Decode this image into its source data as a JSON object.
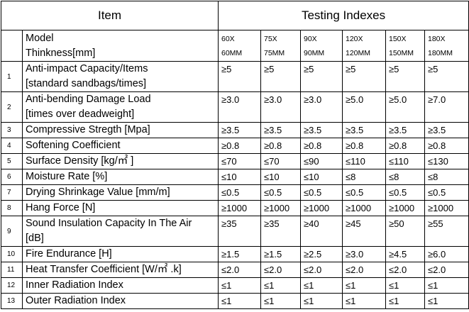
{
  "header": {
    "item_label": "Item",
    "indexes_label": "Testing Indexes"
  },
  "model_row": {
    "label_line1": "Model",
    "label_line2": "Thinkness[mm]",
    "models": [
      {
        "line1": "60X",
        "line2": "60MM"
      },
      {
        "line1": "75X",
        "line2": "75MM"
      },
      {
        "line1": "90X",
        "line2": "90MM"
      },
      {
        "line1": "120X",
        "line2": "120MM"
      },
      {
        "line1": "150X",
        "line2": "150MM"
      },
      {
        "line1": "180X",
        "line2": "180MM"
      }
    ]
  },
  "rows": [
    {
      "num": "1",
      "line1": "Anti-impact Capacity/Items",
      "line2": "[standard sandbags/times]",
      "values": [
        "≥5",
        "≥5",
        "≥5",
        "≥5",
        "≥5",
        "≥5"
      ]
    },
    {
      "num": "2",
      "line1": "Anti-bending Damage Load",
      "line2": "[times over deadweight]",
      "values": [
        "≥3.0",
        "≥3.0",
        "≥3.0",
        "≥5.0",
        "≥5.0",
        "≥7.0"
      ]
    },
    {
      "num": "3",
      "line1": "Compressive Stregth [Mpa]",
      "values": [
        "≥3.5",
        "≥3.5",
        "≥3.5",
        "≥3.5",
        "≥3.5",
        "≥3.5"
      ]
    },
    {
      "num": "4",
      "line1": "Softening Coefficient",
      "values": [
        "≥0.8",
        "≥0.8",
        "≥0.8",
        "≥0.8",
        "≥0.8",
        "≥0.8"
      ]
    },
    {
      "num": "5",
      "line1": "Surface Density [kg/㎡ ]",
      "values": [
        "≤70",
        "≤70",
        "≤90",
        "≤110",
        "≤110",
        "≤130"
      ]
    },
    {
      "num": "6",
      "line1": "Moisture Rate [%]",
      "values": [
        "≤10",
        "≤10",
        "≤10",
        "≤8",
        "≤8",
        "≤8"
      ]
    },
    {
      "num": "7",
      "line1": "Drying Shrinkage Value [mm/m]",
      "values": [
        "≤0.5",
        "≤0.5",
        "≤0.5",
        "≤0.5",
        "≤0.5",
        "≤0.5"
      ]
    },
    {
      "num": "8",
      "line1": "Hang Force [N]",
      "values": [
        "≥1000",
        "≥1000",
        "≥1000",
        "≥1000",
        "≥1000",
        "≥1000"
      ]
    },
    {
      "num": "9",
      "line1": "Sound Insulation Capacity In The Air",
      "line2": "[dB]",
      "values": [
        "≥35",
        "≥35",
        "≥40",
        "≥45",
        "≥50",
        "≥55"
      ]
    },
    {
      "num": "10",
      "line1": "Fire Endurance [H]",
      "values": [
        "≥1.5",
        "≥1.5",
        "≥2.5",
        "≥3.0",
        "≥4.5",
        "≥6.0"
      ]
    },
    {
      "num": "11",
      "line1": "Heat Transfer Coefficient [W/㎡ .k]",
      "values": [
        "≤2.0",
        "≤2.0",
        "≤2.0",
        "≤2.0",
        "≤2.0",
        "≤2.0"
      ]
    },
    {
      "num": "12",
      "line1": "Inner Radiation Index",
      "values": [
        "≤1",
        "≤1",
        "≤1",
        "≤1",
        "≤1",
        "≤1"
      ]
    },
    {
      "num": "13",
      "line1": "Outer Radiation Index",
      "values": [
        "≤1",
        "≤1",
        "≤1",
        "≤1",
        "≤1",
        "≤1"
      ]
    }
  ]
}
